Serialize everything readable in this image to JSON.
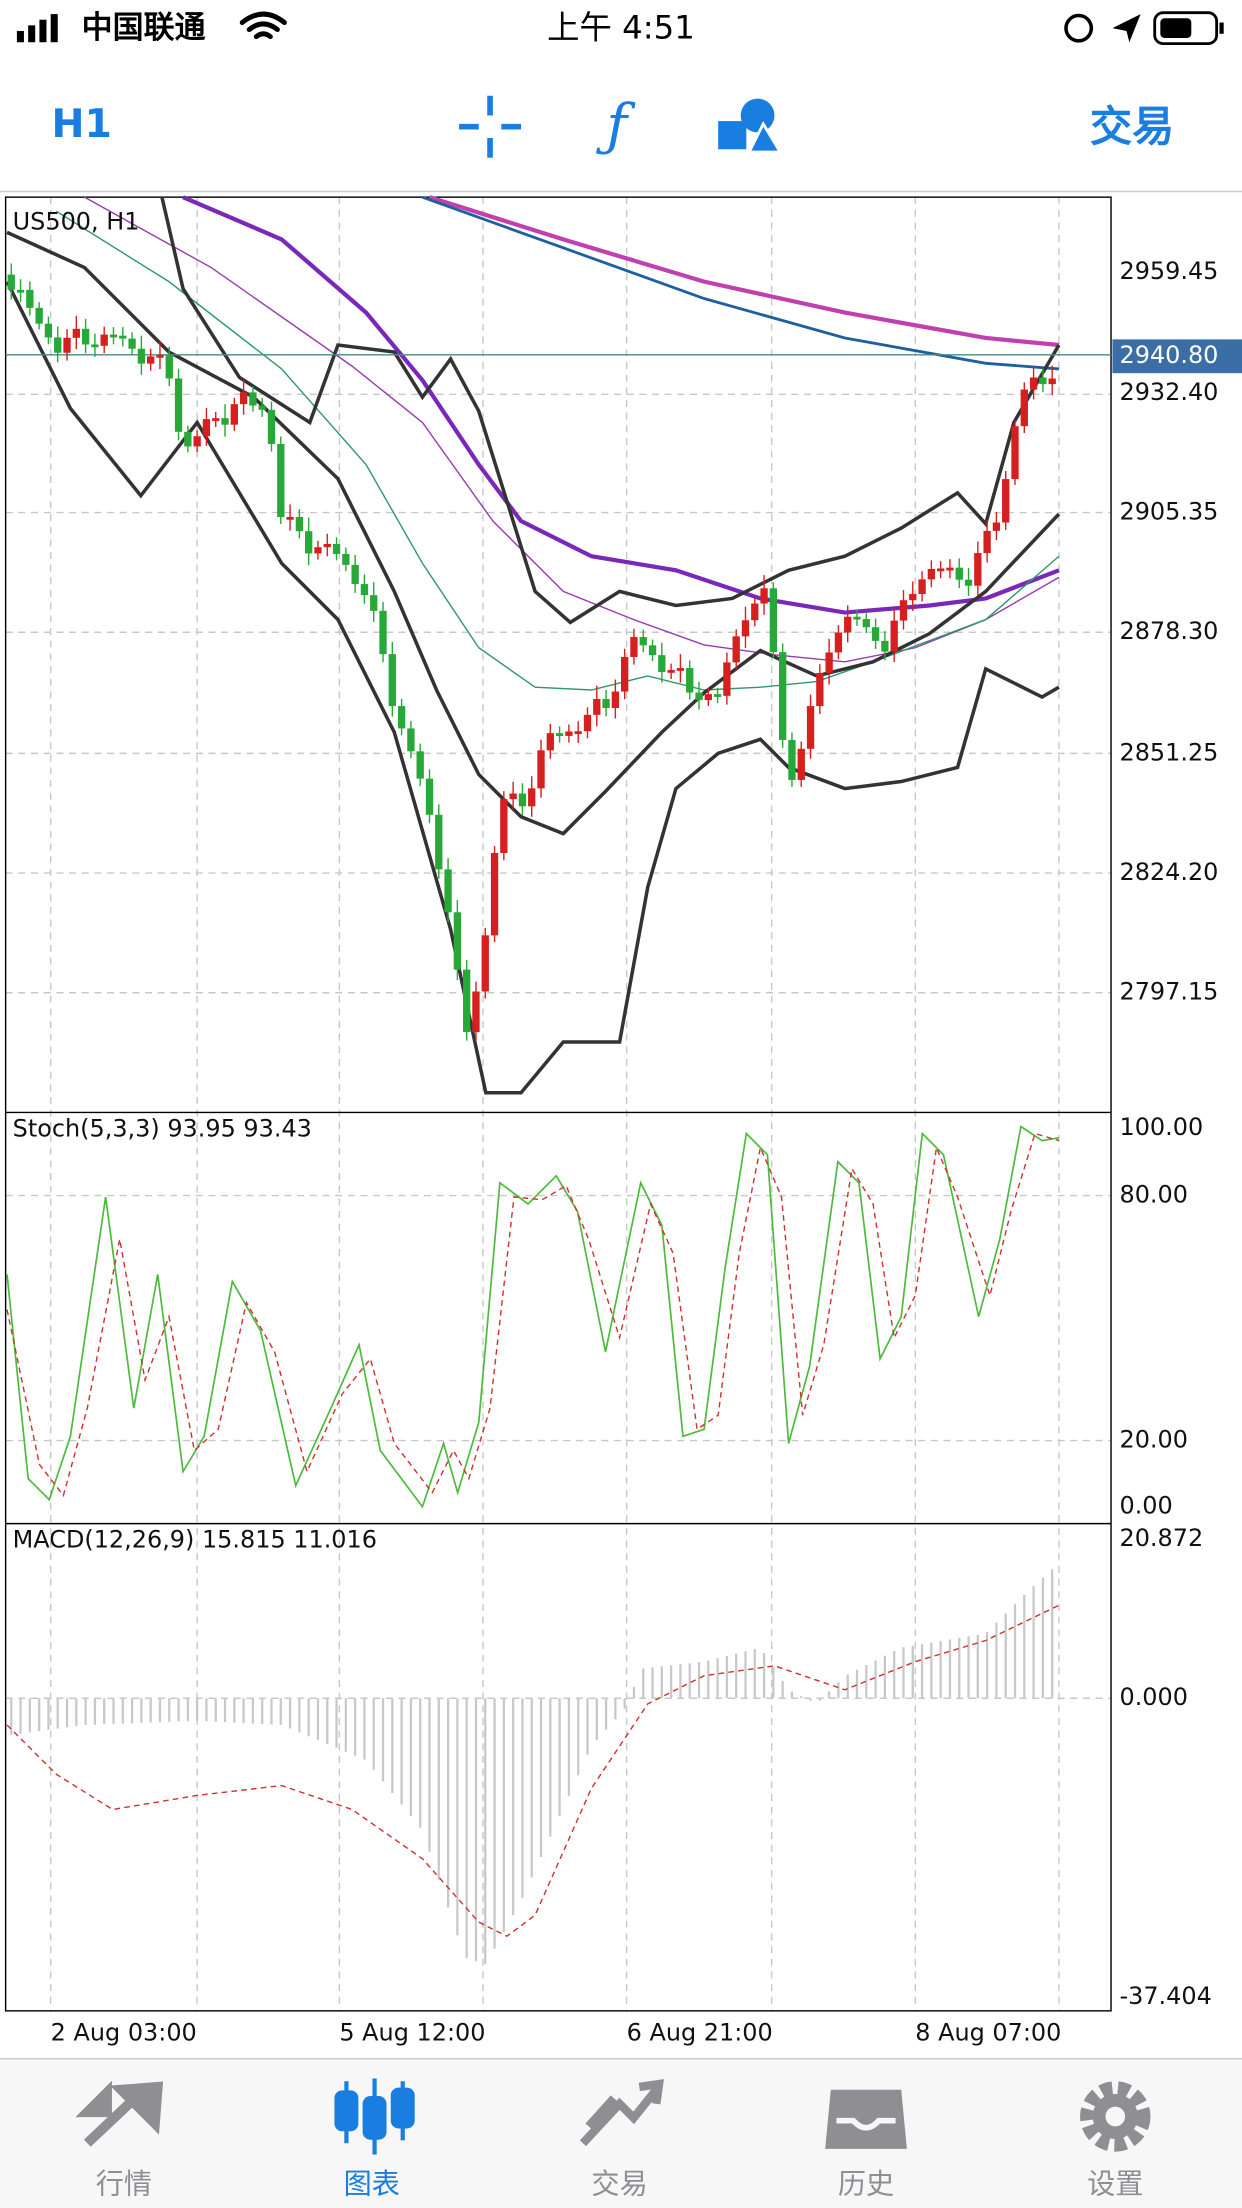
{
  "status_bar": {
    "carrier": "中国联通",
    "time": "上午 4:51"
  },
  "toolbar": {
    "timeframe": "H1",
    "trade": "交易"
  },
  "chart": {
    "title": "US500, H1",
    "current_price": "2940.80",
    "price_axis": [
      "2959.45",
      "2932.40",
      "2905.35",
      "2878.30",
      "2851.25",
      "2824.20",
      "2797.15"
    ],
    "stoch": {
      "label": "Stoch(5,3,3) 93.95 93.43",
      "axis": [
        "100.00",
        "80.00",
        "20.00",
        "0.00"
      ]
    },
    "macd": {
      "label": "MACD(12,26,9) 15.815 11.016",
      "axis": [
        "20.872",
        "0.000",
        "-37.404"
      ]
    },
    "time_axis": [
      "2 Aug 03:00",
      "5 Aug 12:00",
      "6 Aug 21:00",
      "8 Aug 07:00"
    ]
  },
  "tab_bar": [
    "行情",
    "图表",
    "交易",
    "历史",
    "设置"
  ]
}
